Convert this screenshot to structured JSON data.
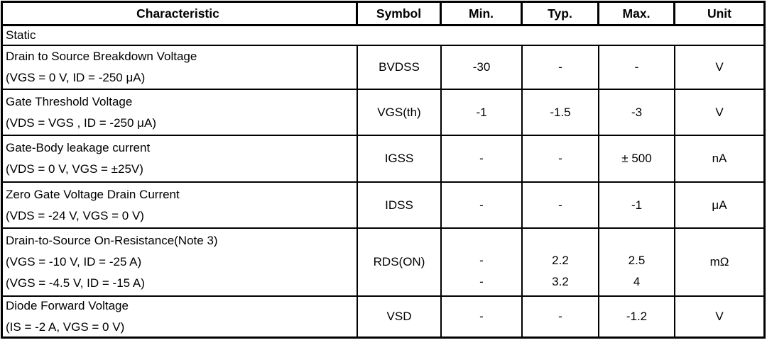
{
  "table": {
    "headers": {
      "characteristic": "Characteristic",
      "symbol": "Symbol",
      "min": "Min.",
      "typ": "Typ.",
      "max": "Max.",
      "unit": "Unit"
    },
    "section_label": "Static",
    "rows": [
      {
        "characteristic": [
          "Drain to Source Breakdown Voltage",
          "(VGS = 0 V, ID = -250 μA)"
        ],
        "symbol": "BVDSS",
        "min": [
          "-30"
        ],
        "typ": [
          "-"
        ],
        "max": [
          "-"
        ],
        "unit": "V"
      },
      {
        "characteristic": [
          "Gate Threshold Voltage",
          "(VDS = VGS , ID = -250 μA)"
        ],
        "symbol": "VGS(th)",
        "min": [
          "-1"
        ],
        "typ": [
          "-1.5"
        ],
        "max": [
          "-3"
        ],
        "unit": "V"
      },
      {
        "characteristic": [
          "Gate-Body leakage current",
          "(VDS = 0 V, VGS = ±25V)"
        ],
        "symbol": "IGSS",
        "min": [
          "-"
        ],
        "typ": [
          "-"
        ],
        "max": [
          "± 500"
        ],
        "unit": "nA"
      },
      {
        "characteristic": [
          "Zero Gate Voltage Drain Current",
          "(VDS = -24 V, VGS = 0 V)"
        ],
        "symbol": "IDSS",
        "min": [
          "-"
        ],
        "typ": [
          "-"
        ],
        "max": [
          "-1"
        ],
        "unit": "μA"
      },
      {
        "characteristic": [
          "Drain-to-Source On-Resistance(Note 3)",
          "(VGS = -10 V, ID = -25 A)",
          "(VGS = -4.5 V, ID = -15 A)"
        ],
        "symbol": "RDS(ON)",
        "min": [
          "-",
          "-"
        ],
        "typ": [
          "2.2",
          "3.2"
        ],
        "max": [
          "2.5",
          "4"
        ],
        "unit": "mΩ"
      },
      {
        "characteristic": [
          "Diode Forward Voltage",
          "(IS = -2 A, VGS = 0 V)"
        ],
        "symbol": "VSD",
        "min": [
          "-"
        ],
        "typ": [
          "-"
        ],
        "max": [
          "-1.2"
        ],
        "unit": "V"
      }
    ],
    "colors": {
      "border": "#000000",
      "background": "#ffffff",
      "text": "#000000"
    }
  }
}
